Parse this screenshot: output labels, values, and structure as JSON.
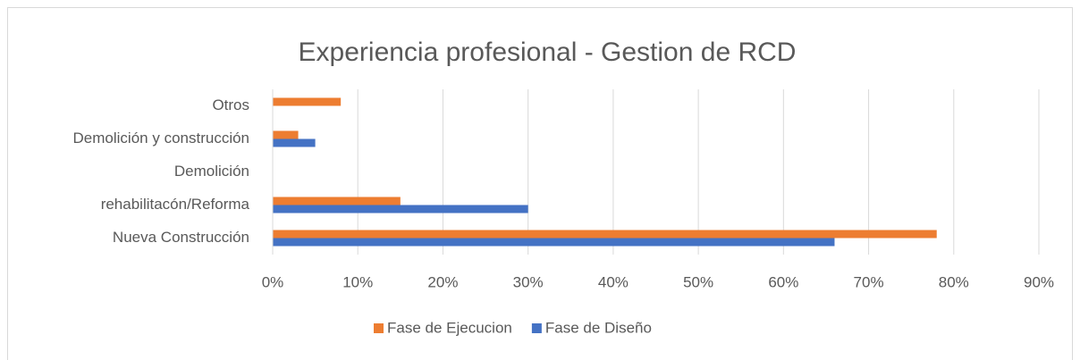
{
  "chart_data": {
    "type": "bar",
    "orientation": "horizontal",
    "title": "Experiencia profesional - Gestion de RCD",
    "categories": [
      "Nueva Construcción",
      "rehabilitacón/Reforma",
      "Demolición",
      "Demolición y construcción",
      "Otros"
    ],
    "series": [
      {
        "name": "Fase de Ejecucion",
        "color": "#ed7d31",
        "values": [
          78,
          15,
          0,
          3,
          8
        ]
      },
      {
        "name": "Fase de Diseño",
        "color": "#4472c4",
        "values": [
          66,
          30,
          0,
          5,
          0
        ]
      }
    ],
    "xlim": [
      0,
      90
    ],
    "xticks": [
      {
        "value": 0,
        "label": "0%"
      },
      {
        "value": 10,
        "label": "10%"
      },
      {
        "value": 20,
        "label": "20%"
      },
      {
        "value": 30,
        "label": "30%"
      },
      {
        "value": 40,
        "label": "40%"
      },
      {
        "value": 50,
        "label": "50%"
      },
      {
        "value": 60,
        "label": "60%"
      },
      {
        "value": 70,
        "label": "70%"
      },
      {
        "value": 80,
        "label": "80%"
      },
      {
        "value": 90,
        "label": "90%"
      }
    ],
    "grid": true,
    "legend": "bottom"
  }
}
